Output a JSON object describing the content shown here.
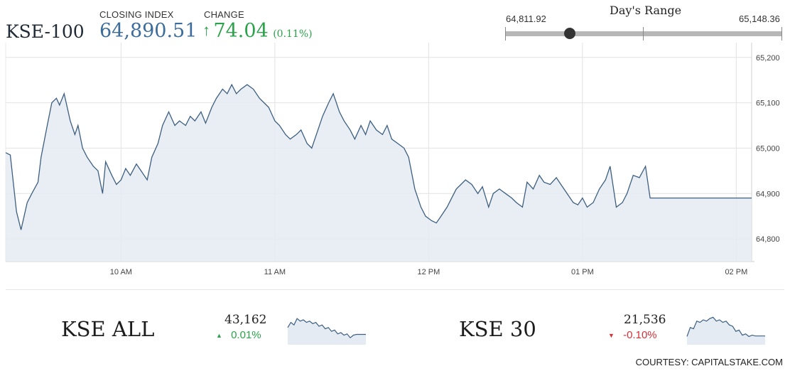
{
  "header": {
    "index_name": "KSE-100",
    "closing_label": "CLOSING INDEX",
    "closing_value": "64,890.51",
    "change_label": "CHANGE",
    "change_arrow": "↑",
    "change_value": "74.04",
    "change_pct": "(0.11%)"
  },
  "days_range": {
    "title": "Day's Range",
    "low_label": "64,811.92",
    "high_label": "65,148.36",
    "low": 64811.92,
    "high": 65148.36,
    "current": 64890.51,
    "bar_color": "#b7b7b7"
  },
  "mini_charts": [
    {
      "name": "KSE ALL",
      "value": "43,162",
      "arrow": "▲",
      "change": "0.01%",
      "direction": "up",
      "trend": [
        0.55,
        0.35,
        0.45,
        0.2,
        0.3,
        0.25,
        0.35,
        0.3,
        0.4,
        0.35,
        0.5,
        0.45,
        0.6,
        0.55,
        0.7,
        0.65,
        0.8,
        0.75,
        0.85,
        0.8,
        0.95,
        0.85,
        0.82,
        0.82,
        0.82,
        0.82
      ]
    },
    {
      "name": "KSE 30",
      "value": "21,536",
      "arrow": "▼",
      "change": "-0.10%",
      "direction": "down",
      "trend": [
        0.9,
        0.55,
        0.6,
        0.3,
        0.35,
        0.25,
        0.3,
        0.2,
        0.15,
        0.3,
        0.25,
        0.35,
        0.3,
        0.45,
        0.5,
        0.7,
        0.65,
        0.85,
        0.8,
        0.9,
        0.85,
        0.88,
        0.88,
        0.88,
        0.88
      ]
    }
  ],
  "courtesy": "COURTESY: CAPITALSTAKE.COM",
  "colors": {
    "line": "#3d5f80",
    "area": "#e4ebf2",
    "grid": "#e2e2e2",
    "up": "#2aa34a",
    "down": "#d2323a"
  },
  "chart_data": {
    "type": "area",
    "title": "",
    "xlabel": "",
    "ylabel": "",
    "x_ticks": [
      {
        "label": "10 AM",
        "t": 10.0
      },
      {
        "label": "11 AM",
        "t": 11.0
      },
      {
        "label": "12 PM",
        "t": 12.0
      },
      {
        "label": "01 PM",
        "t": 13.0
      },
      {
        "label": "02 PM",
        "t": 14.0
      }
    ],
    "y_ticks": [
      64800,
      64900,
      65000,
      65100,
      65200
    ],
    "y_tick_labels": [
      "64,800",
      "64,900",
      "65,000",
      "65,100",
      "65,200"
    ],
    "xlim": [
      9.25,
      14.1
    ],
    "ylim": [
      64750,
      65220
    ],
    "grid": true,
    "series": [
      {
        "t": [
          9.25,
          9.28,
          9.32,
          9.35,
          9.39,
          9.42,
          9.46,
          9.48,
          9.52,
          9.55,
          9.58,
          9.6,
          9.63,
          9.67,
          9.7,
          9.72,
          9.75,
          9.78,
          9.82,
          9.85,
          9.88,
          9.9,
          9.94,
          9.97,
          10.0,
          10.03,
          10.06,
          10.1,
          10.13,
          10.17,
          10.2,
          10.24,
          10.27,
          10.31,
          10.35,
          10.38,
          10.42,
          10.45,
          10.48,
          10.52,
          10.55,
          10.59,
          10.62,
          10.66,
          10.69,
          10.72,
          10.75,
          10.78,
          10.82,
          10.86,
          10.9,
          10.93,
          10.96,
          11.0,
          11.03,
          11.07,
          11.1,
          11.14,
          11.17,
          11.21,
          11.24,
          11.28,
          11.31,
          11.35,
          11.38,
          11.42,
          11.45,
          11.49,
          11.52,
          11.56,
          11.59,
          11.62,
          11.66,
          11.7,
          11.73,
          11.76,
          11.8,
          11.84,
          11.87,
          11.91,
          11.95,
          11.98,
          12.02,
          12.05,
          12.08,
          12.12,
          12.15,
          12.18,
          12.21,
          12.24,
          12.28,
          12.32,
          12.35,
          12.39,
          12.42,
          12.46,
          12.5,
          12.54,
          12.57,
          12.61,
          12.64,
          12.68,
          12.72,
          12.75,
          12.79,
          12.83,
          12.86,
          12.9,
          12.94,
          12.97,
          13.0,
          13.03,
          13.07,
          13.11,
          13.15,
          13.18,
          13.22,
          13.26,
          13.29,
          13.33,
          13.37,
          13.41,
          13.44,
          13.48,
          13.5,
          14.1
        ],
        "y": [
          64990,
          64985,
          64860,
          64820,
          64880,
          64900,
          64925,
          64980,
          65050,
          65100,
          65110,
          65095,
          65120,
          65060,
          65030,
          65050,
          65000,
          64980,
          64960,
          64950,
          64900,
          64970,
          64940,
          64920,
          64930,
          64955,
          64940,
          64965,
          64950,
          64930,
          64980,
          65010,
          65050,
          65080,
          65050,
          65060,
          65050,
          65070,
          65060,
          65080,
          65055,
          65090,
          65110,
          65130,
          65120,
          65140,
          65120,
          65130,
          65140,
          65130,
          65110,
          65100,
          65090,
          65060,
          65050,
          65030,
          65020,
          65030,
          65040,
          65010,
          65000,
          65040,
          65070,
          65100,
          65120,
          65080,
          65060,
          65040,
          65020,
          65050,
          65030,
          65060,
          65040,
          65030,
          65050,
          65020,
          65010,
          65000,
          64980,
          64910,
          64870,
          64850,
          64840,
          64835,
          64850,
          64870,
          64890,
          64910,
          64920,
          64930,
          64920,
          64900,
          64915,
          64870,
          64900,
          64910,
          64900,
          64890,
          64880,
          64870,
          64925,
          64910,
          64940,
          64925,
          64920,
          64935,
          64920,
          64900,
          64880,
          64875,
          64890,
          64870,
          64880,
          64910,
          64930,
          64960,
          64870,
          64880,
          64900,
          64940,
          64935,
          64960,
          64890,
          64890,
          64890,
          64890
        ]
      }
    ]
  }
}
